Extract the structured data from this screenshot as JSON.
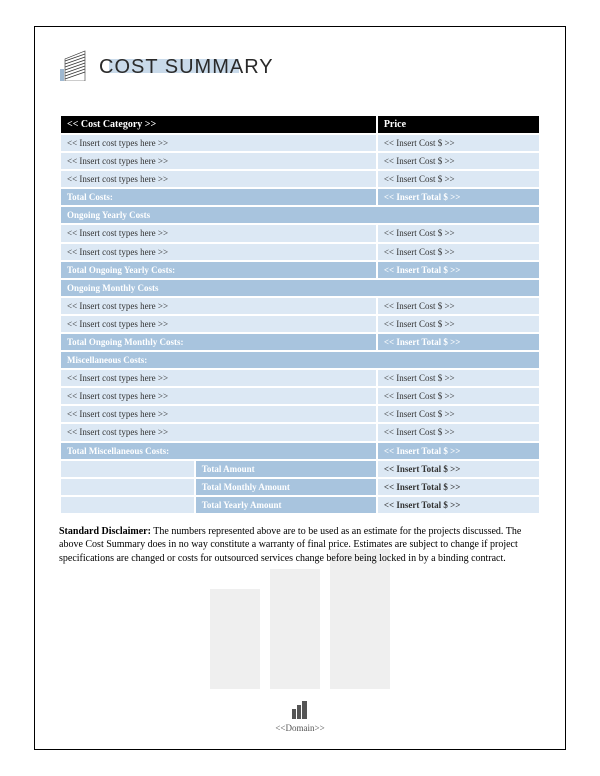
{
  "title": "COST SUMMARY",
  "colors": {
    "header_bg": "#000000",
    "header_fg": "#ffffff",
    "row_light_bg": "#dce8f4",
    "row_light_fg": "#333333",
    "row_blue_bg": "#a8c4de",
    "row_blue_fg": "#ffffff",
    "logo_accent": "#c9daea",
    "page_border": "#000000"
  },
  "table": {
    "header": {
      "category": "<< Cost Category >>",
      "price": "Price"
    },
    "sections": [
      {
        "kind": "items",
        "rows": [
          {
            "label": "<< Insert cost types here >>",
            "price": "<< Insert Cost $ >>"
          },
          {
            "label": "<< Insert cost types here >>",
            "price": "<< Insert Cost $ >>"
          },
          {
            "label": "<< Insert cost types here >>",
            "price": "<< Insert Cost $ >>"
          }
        ]
      },
      {
        "kind": "subtotal",
        "label": "Total Costs:",
        "price": "<< Insert Total $ >>"
      },
      {
        "kind": "section",
        "label": "Ongoing Yearly Costs"
      },
      {
        "kind": "items",
        "rows": [
          {
            "label": "<< Insert cost types here >>",
            "price": "<< Insert Cost $ >>"
          },
          {
            "label": "<< Insert cost types here >>",
            "price": "<< Insert Cost $ >>"
          }
        ]
      },
      {
        "kind": "subtotal",
        "label": "Total Ongoing Yearly Costs:",
        "price": "<< Insert Total $ >>"
      },
      {
        "kind": "section",
        "label": "Ongoing Monthly Costs"
      },
      {
        "kind": "items",
        "rows": [
          {
            "label": "<< Insert cost types here >>",
            "price": "<< Insert Cost $ >>"
          },
          {
            "label": "<< Insert cost types here >>",
            "price": "<< Insert Cost $ >>"
          }
        ]
      },
      {
        "kind": "subtotal",
        "label": "Total Ongoing Monthly Costs:",
        "price": "<< Insert Total $ >>"
      },
      {
        "kind": "section",
        "label": "Miscellaneous Costs:"
      },
      {
        "kind": "items",
        "rows": [
          {
            "label": "<< Insert cost types here >>",
            "price": "<< Insert Cost $ >>"
          },
          {
            "label": "<< Insert cost types here >>",
            "price": "<< Insert Cost $ >>"
          },
          {
            "label": "<< Insert cost types here >>",
            "price": "<< Insert Cost $ >>"
          },
          {
            "label": "<< Insert cost types here >>",
            "price": "<< Insert Cost $ >>"
          }
        ]
      },
      {
        "kind": "subtotal",
        "label": "Total Miscellaneous Costs:",
        "price": "<< Insert Total $ >>"
      }
    ],
    "grand_totals": [
      {
        "label": "Total Amount",
        "price": "<< Insert Total $ >>"
      },
      {
        "label": "Total Monthly Amount",
        "price": "<< Insert Total $ >>"
      },
      {
        "label": "Total Yearly Amount",
        "price": "<< Insert Total $ >>"
      }
    ]
  },
  "disclaimer": {
    "heading": "Standard Disclaimer:",
    "body": "The numbers represented above are to be used as an estimate for the projects discussed. The above Cost Summary does in no way constitute a warranty of final price.  Estimates are subject to change if project specifications are changed or costs for outsourced services change before being locked in by a binding contract."
  },
  "footer": {
    "text": "<<Domain>>"
  }
}
